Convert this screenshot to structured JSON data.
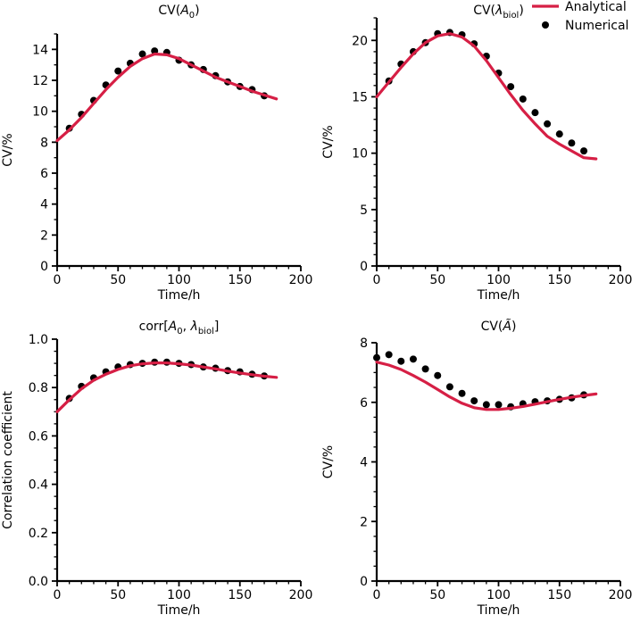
{
  "legend": {
    "analytical": "Analytical",
    "numerical": "Numerical",
    "position": "top-right"
  },
  "colors": {
    "analytical": "#d61f45",
    "numerical": "#000000",
    "axis": "#000000"
  },
  "chart_data": [
    {
      "id": "cv-a0",
      "type": "line",
      "title": "CV(A₀)",
      "title_parts": [
        "CV(",
        "A",
        "0",
        ")"
      ],
      "xlabel": "Time/h",
      "ylabel": "CV/%",
      "xlim": [
        0,
        200
      ],
      "ylim": [
        0,
        15
      ],
      "xticks": [
        0,
        50,
        100,
        150,
        200
      ],
      "yticks": [
        0,
        2,
        4,
        6,
        8,
        10,
        12,
        14
      ],
      "yminor": 1,
      "series": [
        {
          "name": "Analytical",
          "kind": "line",
          "x": [
            0,
            10,
            20,
            30,
            40,
            50,
            60,
            70,
            80,
            90,
            100,
            110,
            120,
            130,
            140,
            150,
            160,
            170,
            180
          ],
          "y": [
            8.1,
            8.8,
            9.6,
            10.5,
            11.4,
            12.2,
            12.9,
            13.4,
            13.7,
            13.65,
            13.4,
            13.0,
            12.6,
            12.2,
            11.9,
            11.6,
            11.3,
            11.05,
            10.8
          ]
        },
        {
          "name": "Numerical",
          "kind": "scatter",
          "x": [
            10,
            20,
            30,
            40,
            50,
            60,
            70,
            80,
            90,
            100,
            110,
            120,
            130,
            140,
            150,
            160,
            170
          ],
          "y": [
            8.9,
            9.8,
            10.7,
            11.7,
            12.6,
            13.1,
            13.7,
            13.9,
            13.8,
            13.3,
            13.0,
            12.7,
            12.3,
            11.9,
            11.6,
            11.4,
            11.0
          ]
        }
      ]
    },
    {
      "id": "cv-lambda",
      "type": "line",
      "title": "CV(λbiol)",
      "title_parts": [
        "CV(",
        "λ",
        "biol",
        ")"
      ],
      "xlabel": "Time/h",
      "ylabel": "CV/%",
      "xlim": [
        0,
        200
      ],
      "ylim": [
        0,
        22
      ],
      "xticks": [
        0,
        50,
        100,
        150,
        200
      ],
      "yticks": [
        0,
        5,
        10,
        15,
        20
      ],
      "yminor": 1,
      "series": [
        {
          "name": "Analytical",
          "kind": "line",
          "x": [
            0,
            10,
            20,
            30,
            40,
            50,
            60,
            70,
            80,
            90,
            100,
            110,
            120,
            130,
            140,
            150,
            160,
            170,
            180
          ],
          "y": [
            15.0,
            16.3,
            17.6,
            18.8,
            19.8,
            20.4,
            20.6,
            20.3,
            19.5,
            18.2,
            16.7,
            15.2,
            13.8,
            12.6,
            11.5,
            10.8,
            10.2,
            9.6,
            9.5
          ]
        },
        {
          "name": "Numerical",
          "kind": "scatter",
          "x": [
            10,
            20,
            30,
            40,
            50,
            60,
            70,
            80,
            90,
            100,
            110,
            120,
            130,
            140,
            150,
            160,
            170
          ],
          "y": [
            16.4,
            17.9,
            19.0,
            19.8,
            20.6,
            20.7,
            20.5,
            19.7,
            18.6,
            17.1,
            15.9,
            14.8,
            13.6,
            12.6,
            11.7,
            10.9,
            10.2
          ]
        }
      ]
    },
    {
      "id": "corr",
      "type": "line",
      "title": "corr[A₀, λbiol]",
      "title_parts": [
        "corr[",
        "A",
        "0",
        ", ",
        "λ",
        "biol",
        "]"
      ],
      "xlabel": "Time/h",
      "ylabel": "Correlation coefficient",
      "xlim": [
        0,
        200
      ],
      "ylim": [
        0,
        1.0
      ],
      "xticks": [
        0,
        50,
        100,
        150,
        200
      ],
      "yticks": [
        0.0,
        0.2,
        0.4,
        0.6,
        0.8,
        1.0
      ],
      "yminor": 0.05,
      "series": [
        {
          "name": "Analytical",
          "kind": "line",
          "x": [
            0,
            10,
            20,
            30,
            40,
            50,
            60,
            70,
            80,
            90,
            100,
            110,
            120,
            130,
            140,
            150,
            160,
            170,
            180
          ],
          "y": [
            0.7,
            0.75,
            0.795,
            0.83,
            0.855,
            0.875,
            0.89,
            0.898,
            0.902,
            0.902,
            0.898,
            0.893,
            0.885,
            0.877,
            0.868,
            0.86,
            0.853,
            0.847,
            0.842
          ]
        },
        {
          "name": "Numerical",
          "kind": "scatter",
          "x": [
            10,
            20,
            30,
            40,
            50,
            60,
            70,
            80,
            90,
            100,
            110,
            120,
            130,
            140,
            150,
            160,
            170
          ],
          "y": [
            0.755,
            0.805,
            0.84,
            0.865,
            0.885,
            0.895,
            0.9,
            0.905,
            0.905,
            0.9,
            0.895,
            0.885,
            0.88,
            0.87,
            0.865,
            0.855,
            0.848
          ]
        }
      ]
    },
    {
      "id": "cv-atilde",
      "type": "line",
      "title": "CV(Ã)",
      "title_parts": [
        "CV(",
        "Ã",
        "",
        ")"
      ],
      "xlabel": "Time/h",
      "ylabel": "CV/%",
      "xlim": [
        0,
        200
      ],
      "ylim": [
        0,
        8
      ],
      "xticks": [
        0,
        50,
        100,
        150,
        200
      ],
      "yticks": [
        0,
        2,
        4,
        6,
        8
      ],
      "yminor": 0.5,
      "series": [
        {
          "name": "Analytical",
          "kind": "line",
          "x": [
            0,
            10,
            20,
            30,
            40,
            50,
            60,
            70,
            80,
            90,
            100,
            110,
            120,
            130,
            140,
            150,
            160,
            170,
            180
          ],
          "y": [
            7.35,
            7.25,
            7.1,
            6.9,
            6.68,
            6.43,
            6.18,
            5.97,
            5.82,
            5.76,
            5.76,
            5.8,
            5.86,
            5.94,
            6.02,
            6.1,
            6.17,
            6.23,
            6.28
          ]
        },
        {
          "name": "Numerical",
          "kind": "scatter",
          "x": [
            0,
            10,
            20,
            30,
            40,
            50,
            60,
            70,
            80,
            90,
            100,
            110,
            120,
            130,
            140,
            150,
            160,
            170
          ],
          "y": [
            7.5,
            7.6,
            7.38,
            7.45,
            7.12,
            6.9,
            6.52,
            6.3,
            6.05,
            5.92,
            5.92,
            5.85,
            5.95,
            6.02,
            6.05,
            6.1,
            6.15,
            6.25
          ]
        }
      ]
    }
  ]
}
